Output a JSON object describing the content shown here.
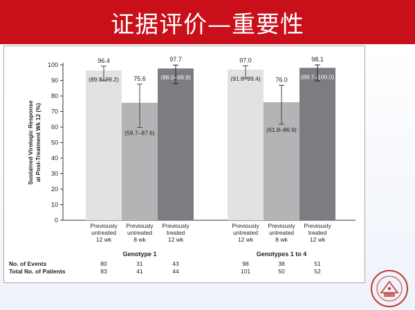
{
  "slide": {
    "title": "证据评价—重要性"
  },
  "colors": {
    "title_bar": "#c80f1a",
    "bar_light": "#e2e2e2",
    "bar_mid": "#b4b4b6",
    "bar_dark": "#7d7d81",
    "seal": "#c0392b"
  },
  "chart_data": {
    "type": "bar",
    "ylabel_line1": "Sustained Virologic Response",
    "ylabel_line2": "at Post-Treatment Wk 12 (%)",
    "ylim": [
      0,
      100
    ],
    "y_ticks": [
      0,
      10,
      20,
      30,
      40,
      50,
      60,
      70,
      80,
      90,
      100
    ],
    "grid": false,
    "groups": [
      {
        "name": "Genotype 1",
        "bars": [
          {
            "label": [
              "Previously",
              "untreated",
              "12 wk"
            ],
            "value": 96.4,
            "value_label": "96.4",
            "ci": [
              89.8,
              99.2
            ],
            "ci_label": "(89.8–99.2)",
            "color_key": "bar_light"
          },
          {
            "label": [
              "Previously",
              "untreated",
              "8 wk"
            ],
            "value": 75.6,
            "value_label": "75.6",
            "ci": [
              59.7,
              87.6
            ],
            "ci_label": "(59.7–87.6)",
            "color_key": "bar_mid"
          },
          {
            "label": [
              "Previously",
              "treated",
              "12 wk"
            ],
            "value": 97.7,
            "value_label": "97.7",
            "ci": [
              88.0,
              99.9
            ],
            "ci_label": "(88.0–99.9)",
            "color_key": "bar_dark"
          }
        ],
        "events": [
          "80",
          "31",
          "43"
        ],
        "patients": [
          "83",
          "41",
          "44"
        ]
      },
      {
        "name": "Genotypes 1 to 4",
        "bars": [
          {
            "label": [
              "Previously",
              "untreated",
              "12 wk"
            ],
            "value": 97.0,
            "value_label": "97.0",
            "ci": [
              91.6,
              99.4
            ],
            "ci_label": "(91.6–99.4)",
            "color_key": "bar_light"
          },
          {
            "label": [
              "Previously",
              "untreated",
              "8 wk"
            ],
            "value": 76.0,
            "value_label": "76.0",
            "ci": [
              61.8,
              86.9
            ],
            "ci_label": "(61.8–86.9)",
            "color_key": "bar_mid"
          },
          {
            "label": [
              "Previously",
              "treated",
              "12 wk"
            ],
            "value": 98.1,
            "value_label": "98.1",
            "ci": [
              89.7,
              100.0
            ],
            "ci_label": "(89.7–100.0)",
            "color_key": "bar_dark"
          }
        ],
        "events": [
          "98",
          "38",
          "51"
        ],
        "patients": [
          "101",
          "50",
          "52"
        ]
      }
    ],
    "row_labels": {
      "events": "No. of Events",
      "patients": "Total No. of Patients"
    }
  }
}
